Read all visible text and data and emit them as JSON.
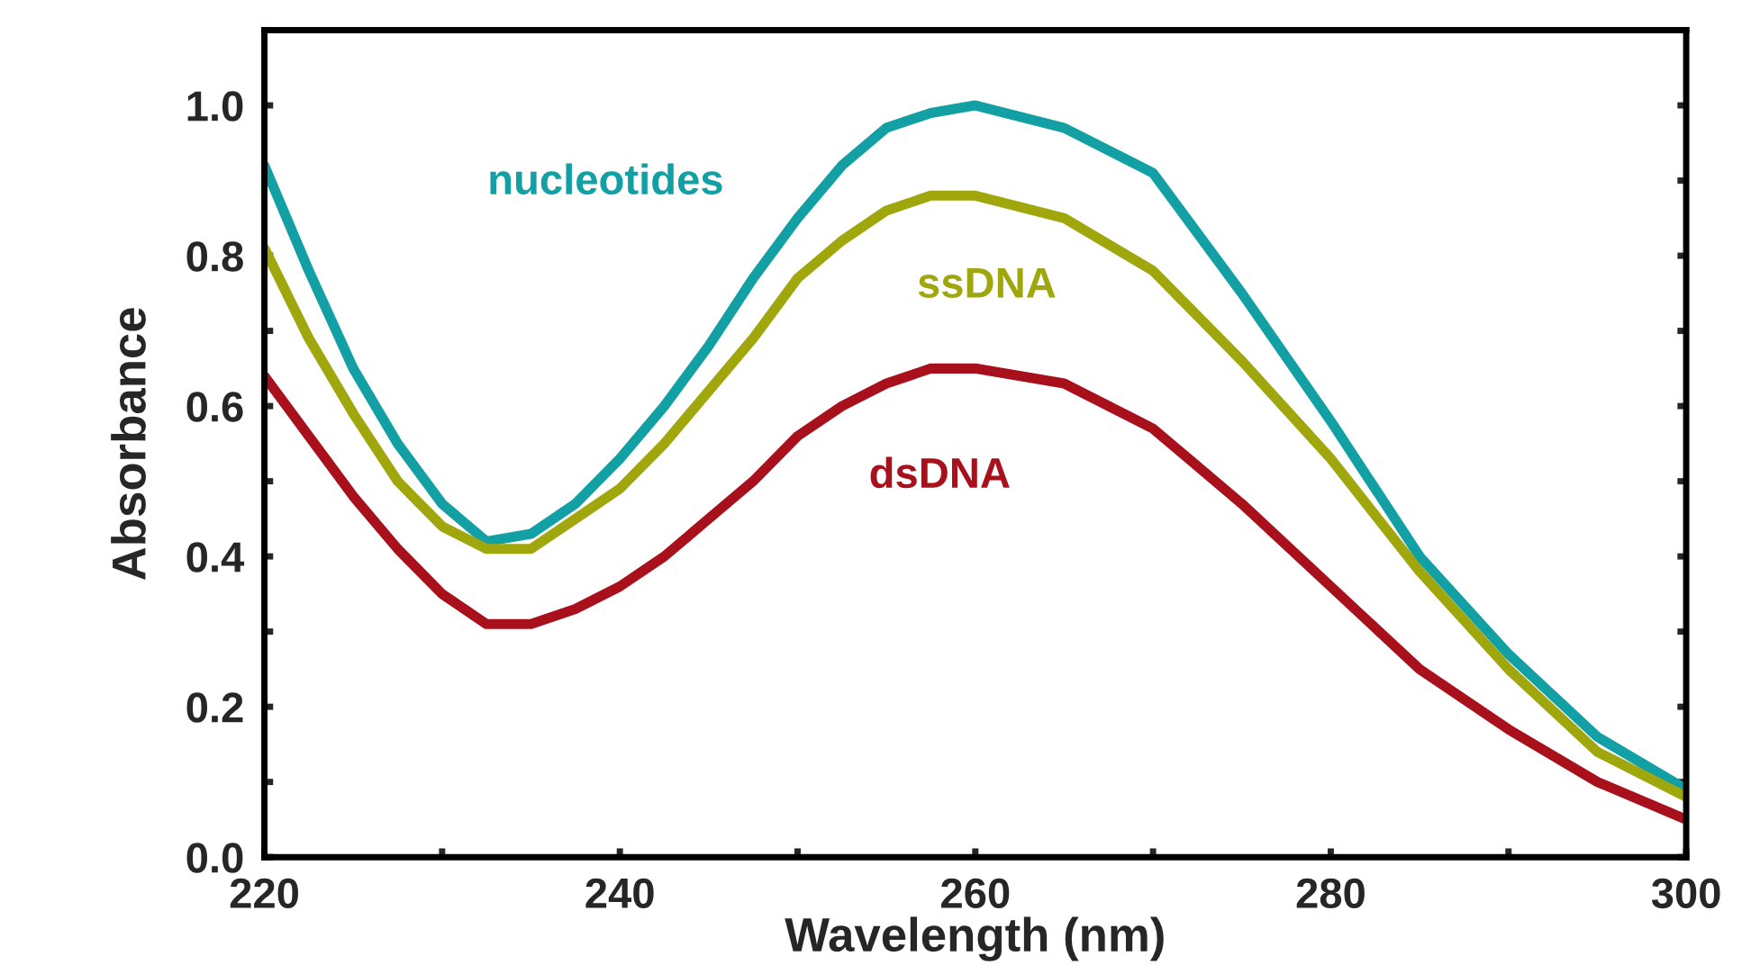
{
  "chart_data": {
    "type": "line",
    "xlabel": "Wavelength (nm)",
    "ylabel": "Absorbance",
    "xlim": [
      220,
      300
    ],
    "ylim": [
      0,
      1.1
    ],
    "xticks": [
      220,
      {
        "value": 230,
        "label": null
      },
      240,
      {
        "value": 250,
        "label": null
      },
      260,
      {
        "value": 270,
        "label": null
      },
      280,
      {
        "value": 290,
        "label": null
      },
      300
    ],
    "yticks": [
      {
        "value": 0,
        "label": "0.0"
      },
      {
        "value": 0.1,
        "label": null
      },
      0.2,
      {
        "value": 0.3,
        "label": null
      },
      0.4,
      {
        "value": 0.5,
        "label": null
      },
      0.6,
      {
        "value": 0.7,
        "label": null
      },
      0.8,
      {
        "value": 0.9,
        "label": null
      },
      {
        "value": 1.0,
        "label": "1.0"
      }
    ],
    "grid": false,
    "legend": false,
    "marker": "none",
    "line_style": "solid",
    "x": [
      220,
      222.5,
      225,
      227.5,
      230,
      232.5,
      235,
      237.5,
      240,
      242.5,
      245,
      247.5,
      250,
      252.5,
      255,
      257.5,
      260,
      265,
      270,
      275,
      280,
      285,
      290,
      295,
      300
    ],
    "series": [
      {
        "name": "nucleotides",
        "color": "#13a0a4",
        "values": [
          0.92,
          0.78,
          0.65,
          0.55,
          0.47,
          0.42,
          0.43,
          0.47,
          0.53,
          0.6,
          0.68,
          0.77,
          0.85,
          0.92,
          0.97,
          0.99,
          1.0,
          0.97,
          0.91,
          0.75,
          0.58,
          0.4,
          0.27,
          0.16,
          0.09
        ]
      },
      {
        "name": "ssDNA",
        "color": "#a0a70d",
        "values": [
          0.81,
          0.69,
          0.59,
          0.5,
          0.44,
          0.41,
          0.41,
          0.45,
          0.49,
          0.55,
          0.62,
          0.69,
          0.77,
          0.82,
          0.86,
          0.88,
          0.88,
          0.85,
          0.78,
          0.66,
          0.53,
          0.38,
          0.25,
          0.14,
          0.08
        ]
      },
      {
        "name": "dsDNA",
        "color": "#a8111c",
        "values": [
          0.64,
          0.56,
          0.48,
          0.41,
          0.35,
          0.31,
          0.31,
          0.33,
          0.36,
          0.4,
          0.45,
          0.5,
          0.56,
          0.6,
          0.63,
          0.65,
          0.65,
          0.63,
          0.57,
          0.47,
          0.36,
          0.25,
          0.17,
          0.1,
          0.05
        ]
      }
    ]
  }
}
